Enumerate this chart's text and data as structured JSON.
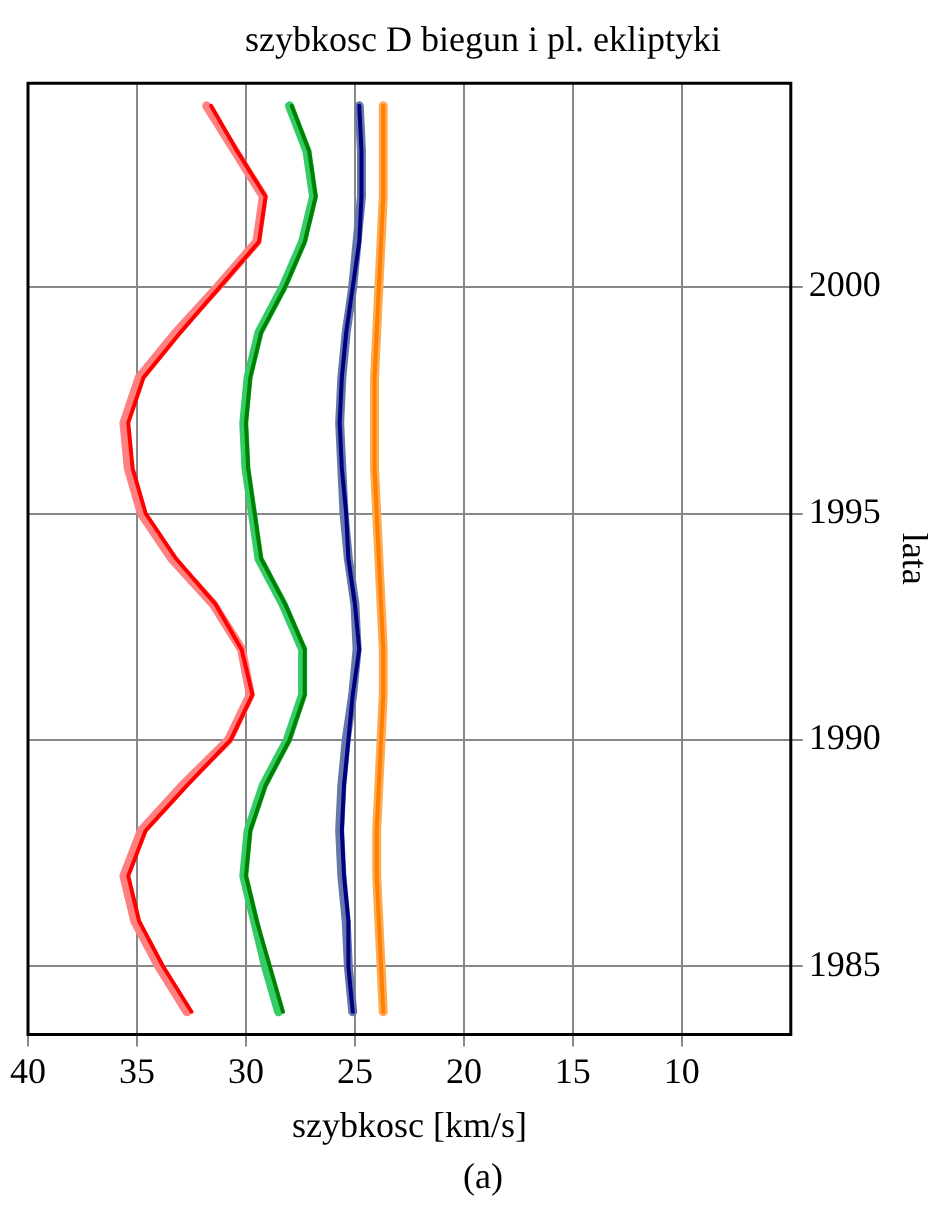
{
  "chart_data": {
    "type": "line",
    "orientation": "horizontal",
    "title": "szybkosc D biegun i pl. ekliptyki",
    "xlabel": "szybkosc [km/s]",
    "ylabel": "lata",
    "annotations": [
      "(a)"
    ],
    "x": [
      1984,
      1985,
      1986,
      1987,
      1988,
      1989,
      1990,
      1991,
      1992,
      1993,
      1994,
      1995,
      1996,
      1997,
      1998,
      1999,
      2000,
      2001,
      2002,
      2003,
      2004
    ],
    "series": [
      {
        "color": "#ff8080",
        "values": [
          32.7,
          34.0,
          35.1,
          35.6,
          34.8,
          32.9,
          30.8,
          29.8,
          30.2,
          31.5,
          33.4,
          34.8,
          35.4,
          35.6,
          34.9,
          33.2,
          31.3,
          29.5,
          29.2,
          30.5,
          31.8
        ]
      },
      {
        "color": "#ff0000",
        "values": [
          32.5,
          33.8,
          34.9,
          35.4,
          34.6,
          32.7,
          30.7,
          29.7,
          30.2,
          31.4,
          33.2,
          34.6,
          35.2,
          35.4,
          34.7,
          33.0,
          31.2,
          29.4,
          29.1,
          30.4,
          31.6
        ]
      },
      {
        "color": "#33cc66",
        "values": [
          28.5,
          29.1,
          29.6,
          30.1,
          29.9,
          29.2,
          28.1,
          27.4,
          27.4,
          28.3,
          29.4,
          29.7,
          30.0,
          30.1,
          29.9,
          29.4,
          28.3,
          27.4,
          26.9,
          27.2,
          28.0
        ]
      },
      {
        "color": "#008000",
        "values": [
          28.3,
          28.9,
          29.5,
          30.0,
          29.8,
          29.1,
          28.0,
          27.3,
          27.3,
          28.2,
          29.3,
          29.6,
          29.9,
          30.0,
          29.8,
          29.3,
          28.2,
          27.3,
          26.8,
          27.1,
          27.9
        ]
      },
      {
        "color": "#6677aa",
        "values": [
          25.1,
          25.3,
          25.4,
          25.6,
          25.7,
          25.6,
          25.4,
          25.1,
          24.9,
          25.0,
          25.3,
          25.5,
          25.6,
          25.7,
          25.6,
          25.4,
          25.1,
          24.9,
          24.7,
          24.7,
          24.8
        ]
      },
      {
        "color": "#000080",
        "values": [
          25.1,
          25.3,
          25.3,
          25.5,
          25.6,
          25.5,
          25.3,
          25.1,
          24.8,
          25.0,
          25.3,
          25.4,
          25.6,
          25.7,
          25.6,
          25.4,
          25.1,
          24.8,
          24.7,
          24.7,
          24.8
        ]
      },
      {
        "color": "#ffaa55",
        "values": [
          23.7,
          23.8,
          23.9,
          24.0,
          24.0,
          23.9,
          23.8,
          23.7,
          23.7,
          23.8,
          23.9,
          24.0,
          24.1,
          24.1,
          24.1,
          24.0,
          23.9,
          23.8,
          23.7,
          23.7,
          23.7
        ]
      },
      {
        "color": "#ff8000",
        "values": [
          23.7,
          23.8,
          23.9,
          24.0,
          24.0,
          23.9,
          23.8,
          23.7,
          23.7,
          23.8,
          23.9,
          24.0,
          24.1,
          24.1,
          24.1,
          24.0,
          23.9,
          23.8,
          23.7,
          23.7,
          23.7
        ]
      }
    ],
    "xlim": [
      40,
      5
    ],
    "xticks": [
      40,
      35,
      30,
      25,
      20,
      15,
      10
    ],
    "ylim": [
      1983.5,
      2004.5
    ],
    "yticks": [
      1985,
      1990,
      1995,
      2000
    ],
    "grid": true,
    "legend": false,
    "marker": "none",
    "line_style": "solid"
  }
}
